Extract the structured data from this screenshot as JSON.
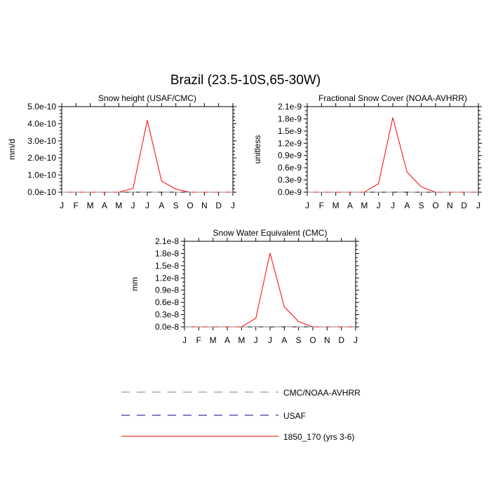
{
  "figure": {
    "title": "Brazil (23.5-10S,65-30W)"
  },
  "colors": {
    "model": "#ff0000",
    "cmc_nooa": "#808080",
    "usaf": "#00008b",
    "axis": "#000000"
  },
  "months": [
    "J",
    "F",
    "M",
    "A",
    "M",
    "J",
    "J",
    "A",
    "S",
    "O",
    "N",
    "D",
    "J"
  ],
  "legend": {
    "entries": [
      {
        "label": "CMC/NOAA-AVHRR",
        "style": "dashed",
        "color": "#808080"
      },
      {
        "label": "USAF",
        "style": "dashed",
        "color": "#00008b"
      },
      {
        "label": "1850_170 (yrs 3-6)",
        "style": "solid",
        "color": "#ff0000"
      }
    ]
  },
  "chart_data": [
    {
      "type": "line",
      "title": "Snow height (USAF/CMC)",
      "ylabel": "mm/d",
      "xlabel": "",
      "categories": [
        "J",
        "F",
        "M",
        "A",
        "M",
        "J",
        "J",
        "A",
        "S",
        "O",
        "N",
        "D",
        "J"
      ],
      "ylim": [
        0,
        5e-10
      ],
      "yticks": [
        0,
        1e-10,
        2e-10,
        3e-10,
        4e-10,
        5e-10
      ],
      "ytick_labels": [
        "0.0e-10",
        "1.0e-10",
        "2.0e-10",
        "3.0e-10",
        "4.0e-10",
        "5.0e-10"
      ],
      "grid": false,
      "series": [
        {
          "name": "1850_170 (yrs 3-6)",
          "style": "solid",
          "color": "#ff0000",
          "values": [
            0,
            0,
            0,
            0,
            0,
            2.2e-11,
            4.2e-10,
            6.5e-11,
            1.8e-11,
            0,
            0,
            0,
            0
          ]
        },
        {
          "name": "USAF",
          "style": "dashed",
          "color": "#00008b",
          "values": [
            0,
            0,
            0,
            0,
            0,
            0,
            0,
            0,
            0,
            0,
            0,
            0,
            0
          ]
        },
        {
          "name": "CMC/NOAA-AVHRR",
          "style": "dashed",
          "color": "#808080",
          "values": [
            0,
            0,
            0,
            0,
            0,
            0,
            0,
            0,
            0,
            0,
            0,
            0,
            0
          ]
        }
      ]
    },
    {
      "type": "line",
      "title": "Fractional Snow Cover (NOAA-AVHRR)",
      "ylabel": "unitless",
      "xlabel": "",
      "categories": [
        "J",
        "F",
        "M",
        "A",
        "M",
        "J",
        "J",
        "A",
        "S",
        "O",
        "N",
        "D",
        "J"
      ],
      "ylim": [
        0,
        2.1e-09
      ],
      "yticks": [
        0,
        3e-10,
        6e-10,
        9e-10,
        1.2e-09,
        1.5e-09,
        1.8e-09,
        2.1e-09
      ],
      "ytick_labels": [
        "0.0e-9",
        "0.3e-9",
        "0.6e-9",
        "0.9e-9",
        "1.2e-9",
        "1.5e-9",
        "1.8e-9",
        "2.1e-9"
      ],
      "grid": false,
      "series": [
        {
          "name": "1850_170 (yrs 3-6)",
          "style": "solid",
          "color": "#ff0000",
          "values": [
            0,
            0,
            0,
            0,
            0,
            2.1e-10,
            1.83e-09,
            4.9e-10,
            1.3e-10,
            0,
            0,
            0,
            0
          ]
        },
        {
          "name": "CMC/NOAA-AVHRR",
          "style": "dashed",
          "color": "#808080",
          "values": [
            0,
            0,
            0,
            0,
            0,
            0,
            0,
            0,
            0,
            0,
            0,
            0,
            0
          ]
        }
      ]
    },
    {
      "type": "line",
      "title": "Snow Water Equivalent (CMC)",
      "ylabel": "mm",
      "xlabel": "",
      "categories": [
        "J",
        "F",
        "M",
        "A",
        "M",
        "J",
        "J",
        "A",
        "S",
        "O",
        "N",
        "D",
        "J"
      ],
      "ylim": [
        0,
        2.1e-08
      ],
      "yticks": [
        0,
        3e-09,
        6e-09,
        9e-09,
        1.2e-08,
        1.5e-08,
        1.8e-08,
        2.1e-08
      ],
      "ytick_labels": [
        "0.0e-8",
        "0.3e-8",
        "0.6e-8",
        "0.9e-8",
        "1.2e-8",
        "1.5e-8",
        "1.8e-8",
        "2.1e-8"
      ],
      "grid": false,
      "series": [
        {
          "name": "1850_170 (yrs 3-6)",
          "style": "solid",
          "color": "#ff0000",
          "values": [
            0,
            0,
            0,
            0,
            0,
            2.1e-09,
            1.81e-08,
            4.9e-09,
            1.3e-09,
            0,
            0,
            0,
            0
          ]
        },
        {
          "name": "CMC/NOAA-AVHRR",
          "style": "dashed",
          "color": "#808080",
          "values": [
            0,
            0,
            0,
            0,
            0,
            0,
            0,
            0,
            0,
            0,
            0,
            0,
            0
          ]
        }
      ]
    }
  ]
}
